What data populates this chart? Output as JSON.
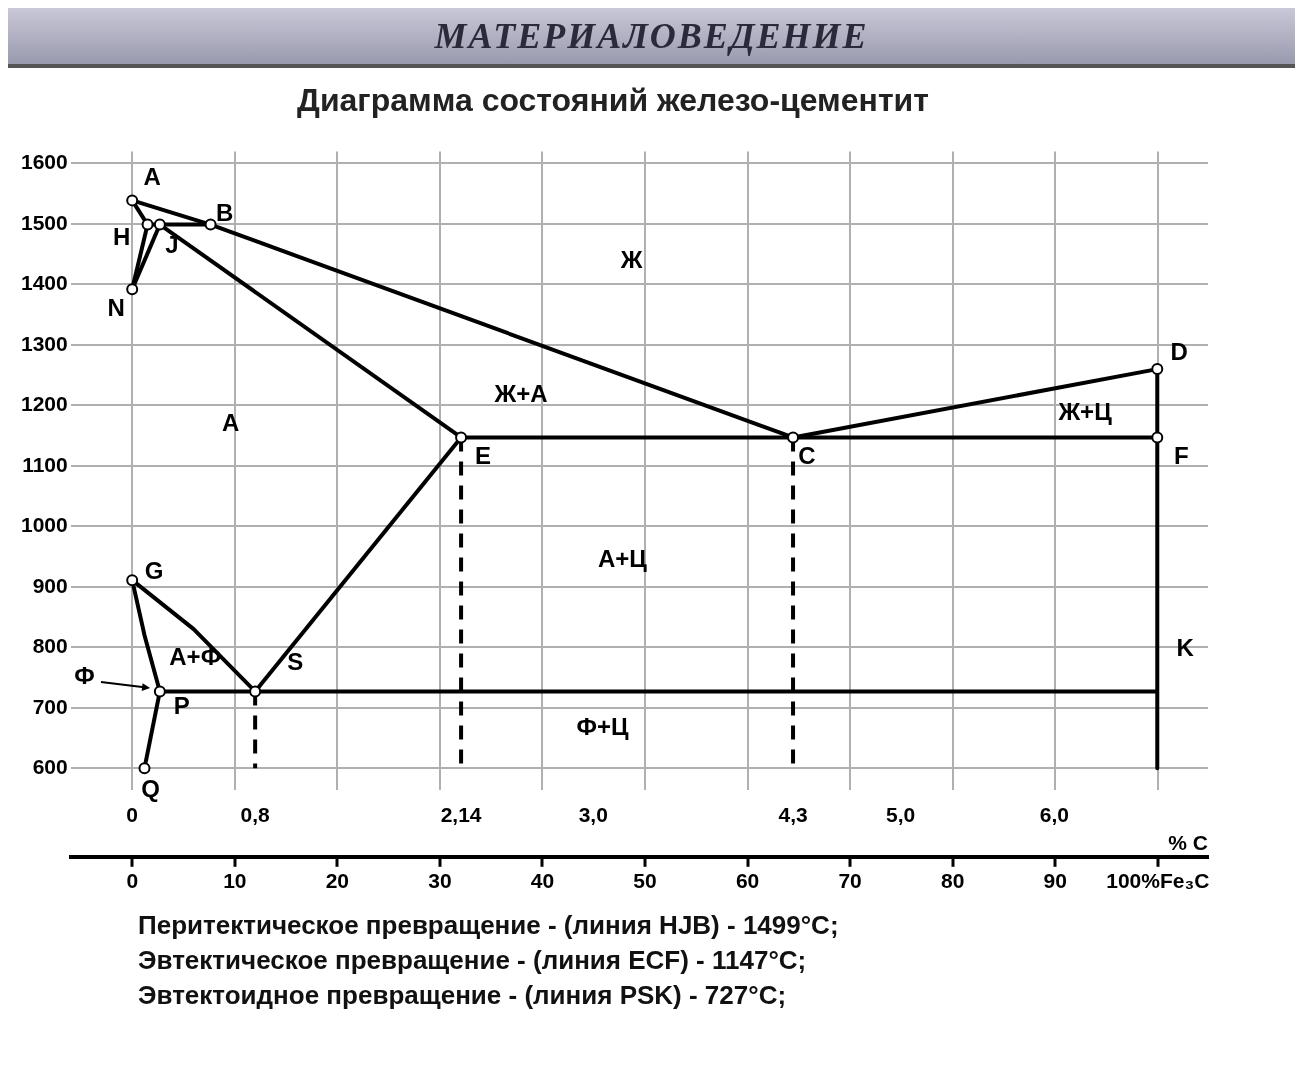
{
  "chart_data": {
    "type": "line",
    "title": "МАТЕРИАЛОВЕДЕНИЕ",
    "subtitle": "Диаграмма состояний железо-цементит",
    "xlabel": "% C",
    "xlim": [
      -0.4,
      7.0
    ],
    "xticks": [
      0,
      {
        "value": 0.8,
        "label": "0,8"
      },
      {
        "value": 2.14,
        "label": "2,14"
      },
      {
        "value": 3.0,
        "label": "3,0"
      },
      {
        "value": 4.3,
        "label": "4,3"
      },
      {
        "value": 5.0,
        "label": "5,0"
      },
      {
        "value": 6.0,
        "label": "6,0"
      }
    ],
    "x2lim": [
      -6,
      104.9
    ],
    "x2ticks": [
      0,
      10,
      20,
      30,
      40,
      50,
      60,
      70,
      80,
      90,
      {
        "value": 100,
        "label": "100%Fe₃C"
      }
    ],
    "ylim": [
      560,
      1620
    ],
    "yticks": [
      600,
      700,
      800,
      900,
      1000,
      1100,
      1200,
      1300,
      1400,
      1500,
      1600
    ],
    "grid": true,
    "legend": false,
    "marker": "none",
    "line_style": "solid",
    "series": [
      {
        "type": "line",
        "color": "#000000",
        "x": [
          0,
          0.51,
          4.3,
          6.67
        ],
        "values": [
          1539,
          1499,
          1147,
          1260
        ]
      },
      {
        "type": "line",
        "color": "#000000",
        "x": [
          0,
          0.1
        ],
        "values": [
          1539,
          1499
        ]
      },
      {
        "type": "line",
        "color": "#000000",
        "x": [
          0.1,
          0.18,
          0.51
        ],
        "values": [
          1499,
          1499,
          1499
        ]
      },
      {
        "type": "line",
        "color": "#000000",
        "x": [
          0.18,
          2.14
        ],
        "values": [
          1499,
          1147
        ]
      },
      {
        "type": "line",
        "color": "#000000",
        "x": [
          0,
          0.1
        ],
        "values": [
          1392,
          1499
        ]
      },
      {
        "type": "line",
        "color": "#000000",
        "x": [
          0,
          0.18
        ],
        "values": [
          1392,
          1499
        ]
      },
      {
        "type": "line",
        "color": "#000000",
        "x": [
          2.14,
          4.3,
          6.67
        ],
        "values": [
          1147,
          1147,
          1147
        ]
      },
      {
        "type": "line",
        "color": "#000000",
        "x": [
          6.67,
          6.67
        ],
        "values": [
          1260,
          600
        ]
      },
      {
        "type": "line",
        "color": "#000000",
        "x": [
          0,
          0.4,
          0.8
        ],
        "values": [
          911,
          830,
          727
        ]
      },
      {
        "type": "line",
        "color": "#000000",
        "x": [
          0,
          0.08,
          0.18
        ],
        "values": [
          911,
          820,
          727
        ]
      },
      {
        "type": "line",
        "color": "#000000",
        "x": [
          0.18,
          0.08
        ],
        "values": [
          727,
          600
        ]
      },
      {
        "type": "line",
        "color": "#000000",
        "x": [
          2.14,
          0.8
        ],
        "values": [
          1147,
          727
        ]
      },
      {
        "type": "line",
        "color": "#000000",
        "x": [
          0.18,
          0.8,
          6.67
        ],
        "values": [
          727,
          727,
          727
        ]
      },
      {
        "type": "line",
        "color": "#000000",
        "line_style": "dashed",
        "x": [
          0.8,
          0.8
        ],
        "values": [
          727,
          600
        ]
      },
      {
        "type": "line",
        "color": "#000000",
        "line_style": "dashed",
        "x": [
          2.14,
          2.14
        ],
        "values": [
          1147,
          600
        ]
      },
      {
        "type": "line",
        "color": "#000000",
        "line_style": "dashed",
        "x": [
          4.3,
          4.3
        ],
        "values": [
          1147,
          600
        ]
      },
      {
        "type": "scatter",
        "marker": "circle",
        "color": "#000000",
        "x": [
          0,
          0.51,
          0.1,
          0.18,
          0,
          2.14,
          4.3,
          6.67,
          6.67,
          0,
          0.8,
          0.18,
          0.08
        ],
        "values": [
          1539,
          1499,
          1499,
          1499,
          1392,
          1147,
          1147,
          1260,
          1147,
          911,
          727,
          727,
          600
        ],
        "value_labels": [
          "A",
          "B",
          "H",
          "J",
          "N",
          "E",
          "C",
          "D",
          "F",
          "G",
          "S",
          "P",
          "Q"
        ]
      }
    ],
    "annotations": [
      {
        "text": "K",
        "x": 6.67,
        "y": 727
      },
      "Ж",
      "Ж+А",
      "А",
      "А+Ц",
      "Ж+Ц",
      "А+Ф",
      "Ф+Ц",
      "Ф",
      "Перитектическое превращение - (линия HJB) - 1499°C;",
      "Эвтектическое превращение - (линия ECF) - 1147°C;",
      "Эвтектоидное превращение - (линия PSK) - 727°C;"
    ]
  }
}
